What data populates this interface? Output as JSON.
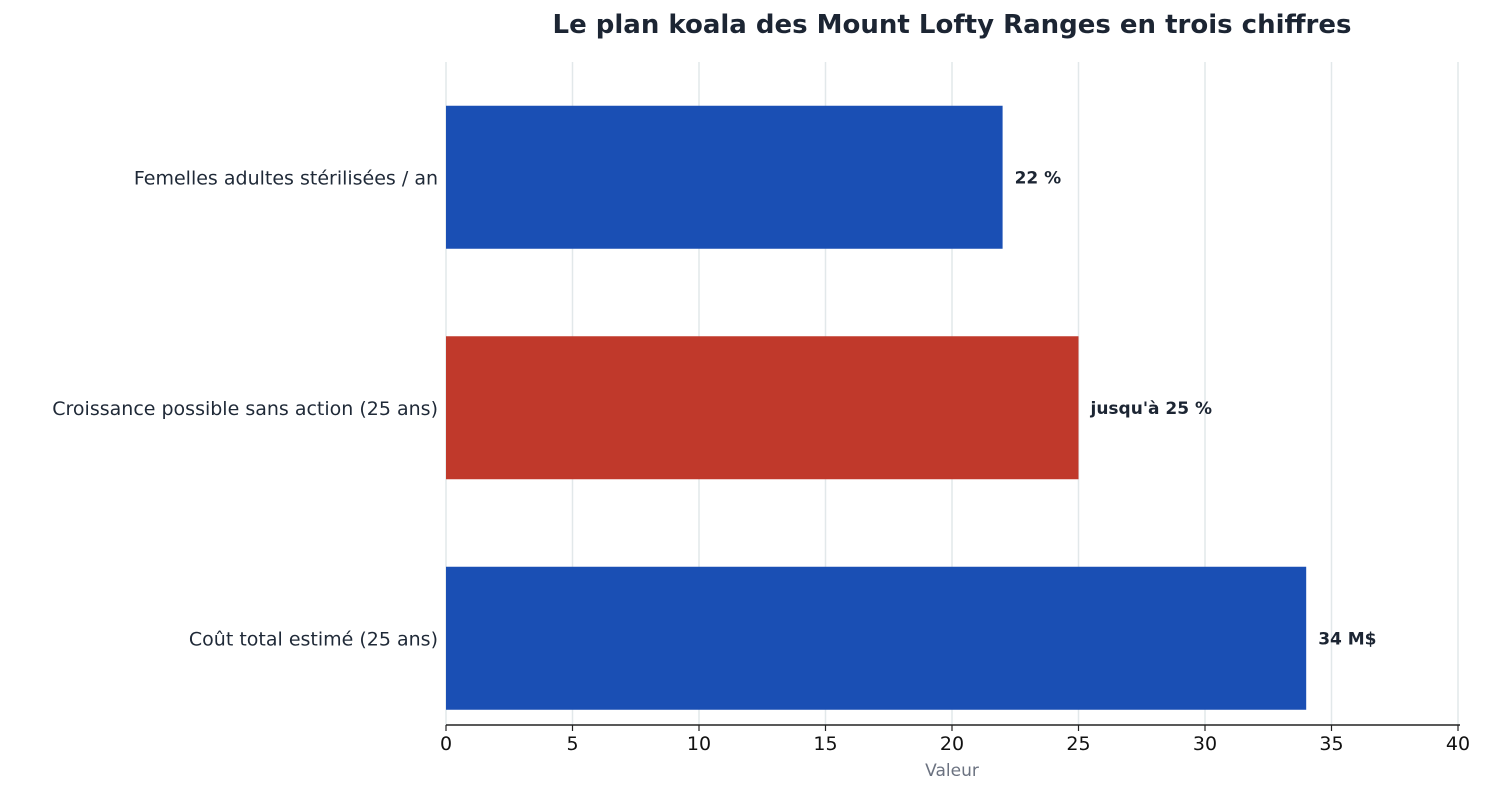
{
  "chart_data": {
    "type": "bar",
    "orientation": "horizontal",
    "title": "Le plan koala des Mount Lofty Ranges en trois chiffres",
    "xlabel": "Valeur",
    "ylabel": "",
    "xlim": [
      0,
      40
    ],
    "xticks": [
      "0",
      "5",
      "10",
      "15",
      "20",
      "25",
      "30",
      "35",
      "40"
    ],
    "grid": "vertical",
    "categories": [
      "Femelles adultes stérilisées / an",
      "Croissance possible sans action (25 ans)",
      "Coût total estimé (25 ans)"
    ],
    "values": [
      22,
      25,
      34
    ],
    "data_labels": [
      "22 %",
      "jusqu'à 25 %",
      "34 M$"
    ],
    "colors": [
      "#1a4fb4",
      "#c0392b",
      "#1a4fb4"
    ]
  }
}
